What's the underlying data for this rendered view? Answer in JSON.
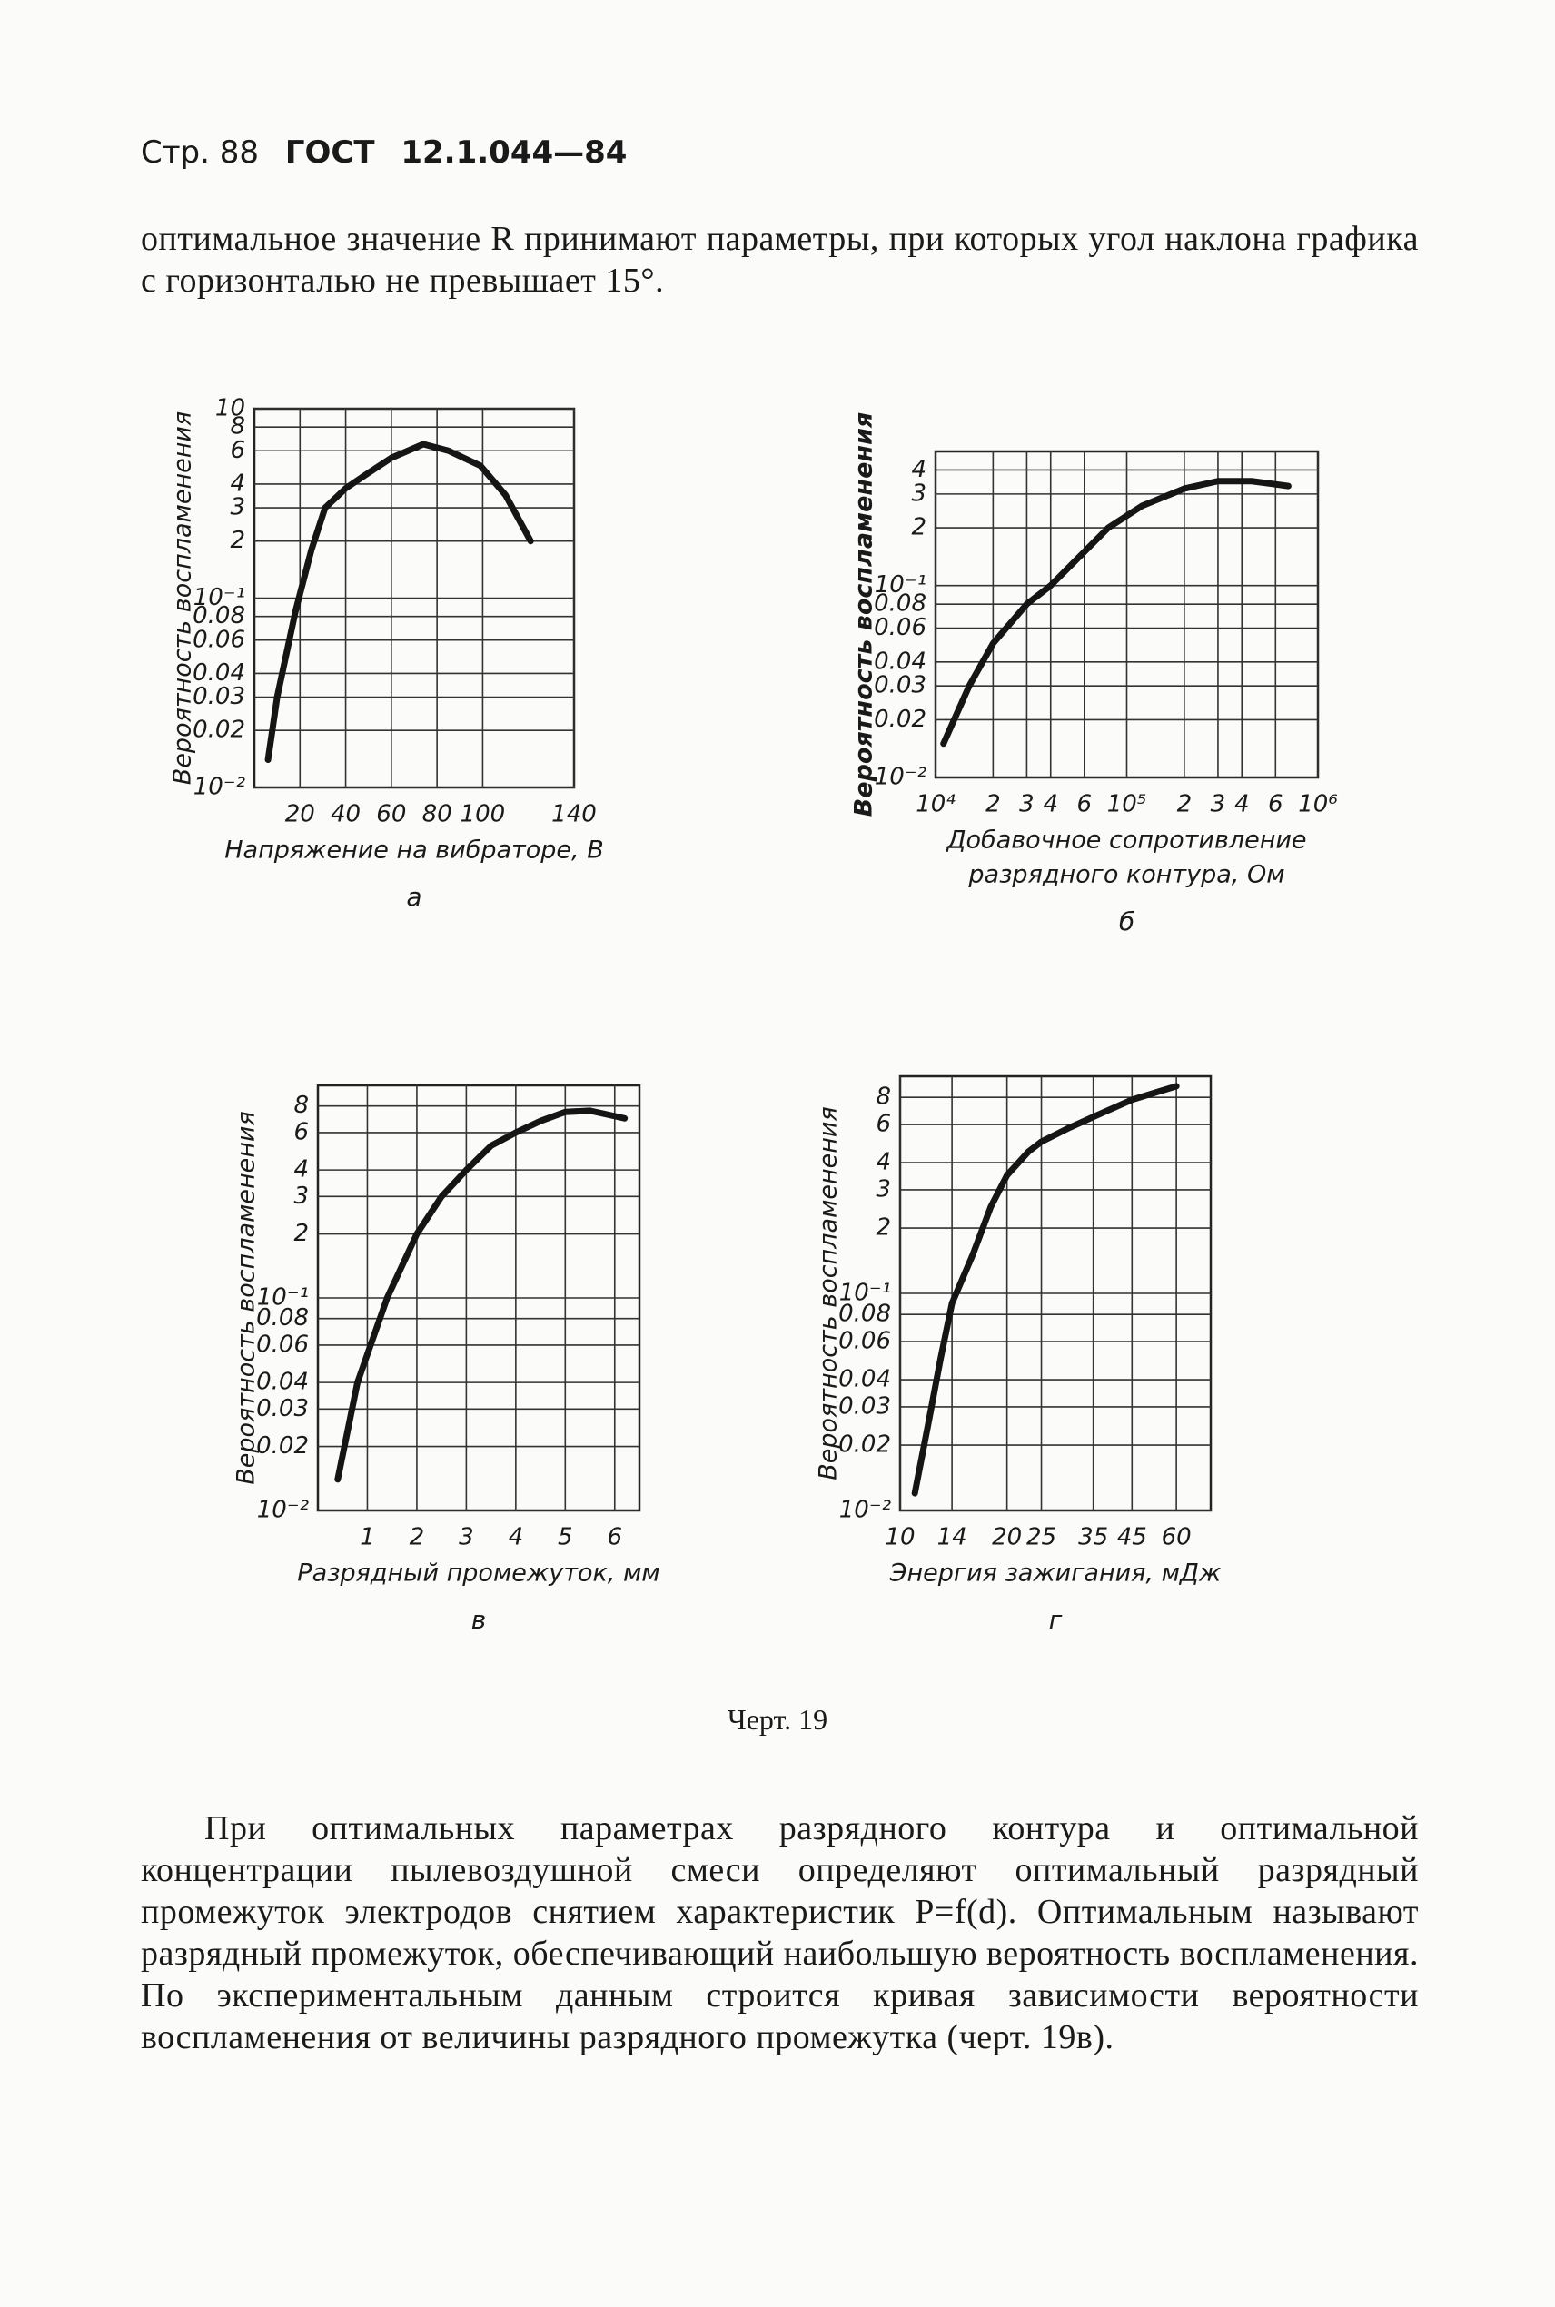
{
  "header": {
    "page": "Стр. 88",
    "standard": "ГОСТ",
    "number": "12.1.044—84"
  },
  "paragraphs": [
    "оптимальное значение R принимают параметры, при которых угол наклона графика с горизонталью не превышает 15°.",
    "При оптимальных параметрах разрядного контура и оптимальной концентрации пылевоздушной смеси определяют оптимальный разрядный промежуток электродов снятием характеристик P=f(d). Оптимальным называют разрядный промежуток, обеспечивающий наибольшую вероятность воспламенения. По экспериментальным данным строится кривая зависимости вероятности воспламенения от величины разрядного промежутка (черт. 19в)."
  ],
  "figure_caption": "Черт. 19",
  "chart_data": [
    {
      "type": "line",
      "caption": "а",
      "y_label": "Вероятность воспламенения",
      "x_label": [
        "Напряжение на вибраторе, В"
      ],
      "log_x": false,
      "log_y": true,
      "grid": true,
      "color": "#151515",
      "bold_y_label": false,
      "xlim": [
        0,
        140
      ],
      "ylim": [
        0.01,
        1
      ],
      "xticks": [
        20,
        40,
        60,
        80,
        100,
        140
      ],
      "yticks": [
        {
          "value": 0.01,
          "label": "10⁻²"
        },
        0.02,
        0.03,
        0.04,
        0.06,
        0.08,
        {
          "value": 0.1,
          "label": "10⁻¹"
        },
        {
          "value": 0.2,
          "label": "2"
        },
        {
          "value": 0.3,
          "label": "3"
        },
        {
          "value": 0.4,
          "label": "4"
        },
        {
          "value": 0.6,
          "label": "6"
        },
        {
          "value": 0.8,
          "label": "8"
        },
        {
          "value": 1,
          "label": "10"
        }
      ],
      "x": [
        6,
        10,
        18,
        25,
        31,
        40,
        49,
        60,
        74,
        85,
        99,
        110,
        121
      ],
      "values": [
        0.014,
        0.03,
        0.085,
        0.18,
        0.3,
        0.38,
        0.45,
        0.55,
        0.65,
        0.6,
        0.5,
        0.35,
        0.2
      ]
    },
    {
      "type": "line",
      "caption": "б",
      "y_label": "Вероятность воспламенения",
      "x_label": [
        "Добавочное сопротивление",
        "разрядного контура, Ом"
      ],
      "log_x": true,
      "log_y": true,
      "grid": true,
      "color": "#151515",
      "bold_y_label": true,
      "xlim": [
        10000,
        1000000
      ],
      "ylim": [
        0.01,
        0.5
      ],
      "xticks": [
        {
          "value": 10000,
          "label": "10⁴"
        },
        {
          "value": 20000,
          "label": "2"
        },
        {
          "value": 30000,
          "label": "3"
        },
        {
          "value": 40000,
          "label": "4"
        },
        {
          "value": 60000,
          "label": "6"
        },
        {
          "value": 100000,
          "label": "10⁵"
        },
        {
          "value": 200000,
          "label": "2"
        },
        {
          "value": 300000,
          "label": "3"
        },
        {
          "value": 400000,
          "label": "4"
        },
        {
          "value": 600000,
          "label": "6"
        },
        {
          "value": 1000000,
          "label": "10⁶"
        }
      ],
      "yticks": [
        {
          "value": 0.01,
          "label": "10⁻²"
        },
        0.02,
        0.03,
        0.04,
        0.06,
        0.08,
        {
          "value": 0.1,
          "label": "10⁻¹"
        },
        {
          "value": 0.2,
          "label": "2"
        },
        {
          "value": 0.3,
          "label": "3"
        },
        {
          "value": 0.4,
          "label": "4"
        }
      ],
      "x": [
        11000,
        15000,
        20000,
        30000,
        40000,
        60000,
        80000,
        120000,
        200000,
        300000,
        450000,
        700000
      ],
      "values": [
        0.015,
        0.03,
        0.05,
        0.08,
        0.1,
        0.15,
        0.2,
        0.26,
        0.32,
        0.35,
        0.35,
        0.33
      ]
    },
    {
      "type": "line",
      "caption": "в",
      "y_label": "Вероятность воспламенения",
      "x_label": [
        "Разрядный промежуток, мм"
      ],
      "log_x": false,
      "log_y": true,
      "grid": true,
      "color": "#151515",
      "bold_y_label": false,
      "xlim": [
        0,
        6.5
      ],
      "ylim": [
        0.01,
        1
      ],
      "xticks": [
        1,
        2,
        3,
        4,
        5,
        6
      ],
      "yticks": [
        {
          "value": 0.01,
          "label": "10⁻²"
        },
        0.02,
        0.03,
        0.04,
        0.06,
        0.08,
        {
          "value": 0.1,
          "label": "10⁻¹"
        },
        {
          "value": 0.2,
          "label": "2"
        },
        {
          "value": 0.3,
          "label": "3"
        },
        {
          "value": 0.4,
          "label": "4"
        },
        {
          "value": 0.6,
          "label": "6"
        },
        {
          "value": 0.8,
          "label": "8"
        }
      ],
      "x": [
        0.4,
        0.8,
        1.4,
        2,
        2.5,
        3,
        3.5,
        4,
        4.5,
        5,
        5.5,
        6.2
      ],
      "values": [
        0.014,
        0.04,
        0.1,
        0.2,
        0.3,
        0.4,
        0.52,
        0.6,
        0.68,
        0.75,
        0.76,
        0.7
      ]
    },
    {
      "type": "line",
      "caption": "г",
      "y_label": "Вероятность воспламенения",
      "x_label": [
        "Энергия зажигания, мДж"
      ],
      "log_x": true,
      "log_y": true,
      "grid": true,
      "color": "#151515",
      "bold_y_label": false,
      "xlim": [
        10,
        75
      ],
      "ylim": [
        0.01,
        1
      ],
      "xticks": [
        10,
        14,
        20,
        25,
        35,
        45,
        60
      ],
      "yticks": [
        {
          "value": 0.01,
          "label": "10⁻²"
        },
        0.02,
        0.03,
        0.04,
        0.06,
        0.08,
        {
          "value": 0.1,
          "label": "10⁻¹"
        },
        {
          "value": 0.2,
          "label": "2"
        },
        {
          "value": 0.3,
          "label": "3"
        },
        {
          "value": 0.4,
          "label": "4"
        },
        {
          "value": 0.6,
          "label": "6"
        },
        {
          "value": 0.8,
          "label": "8"
        }
      ],
      "x": [
        11,
        12,
        13,
        14,
        16,
        18,
        20,
        23,
        25,
        30,
        35,
        45,
        60
      ],
      "values": [
        0.012,
        0.025,
        0.05,
        0.09,
        0.15,
        0.25,
        0.35,
        0.45,
        0.5,
        0.58,
        0.65,
        0.78,
        0.9
      ]
    }
  ]
}
